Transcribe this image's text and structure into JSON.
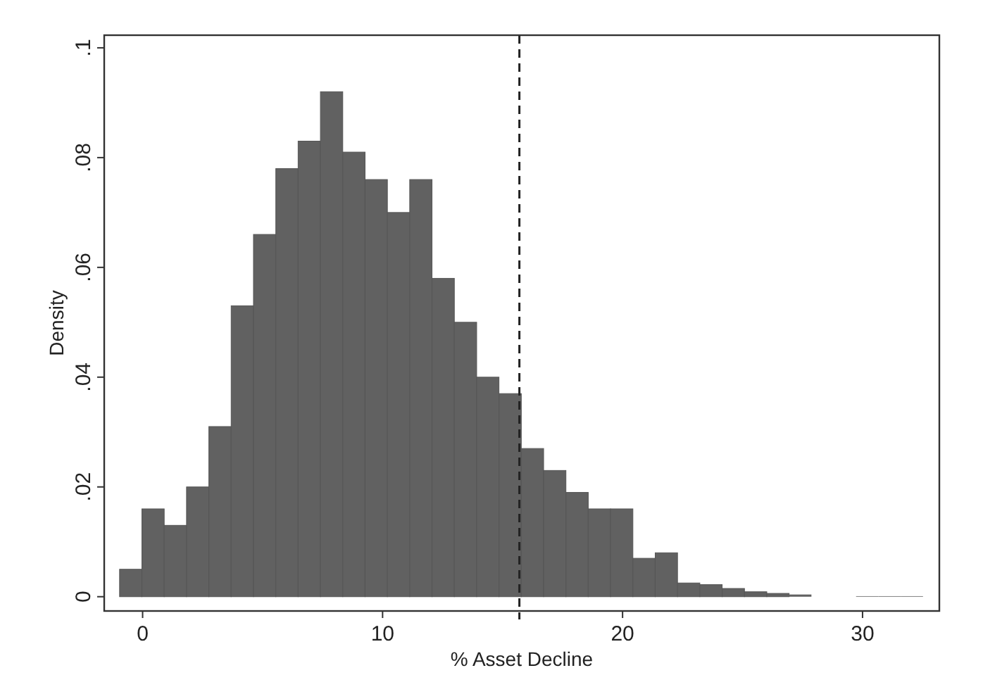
{
  "chart_data": {
    "type": "histogram",
    "xlabel": "% Asset Decline",
    "ylabel": "Density",
    "bins": [
      -0.96,
      -0.03,
      0.9,
      1.83,
      2.76,
      3.69,
      4.62,
      5.55,
      6.48,
      7.41,
      8.34,
      9.27,
      10.2,
      11.13,
      12.06,
      12.99,
      13.92,
      14.85,
      15.78,
      16.71,
      17.64,
      18.57,
      19.5,
      20.43,
      21.36,
      22.29,
      23.22,
      24.15,
      25.08,
      26.01,
      26.94,
      27.87,
      28.8,
      29.73,
      30.66,
      31.59,
      32.52
    ],
    "values": [
      0.005,
      0.016,
      0.013,
      0.02,
      0.031,
      0.053,
      0.066,
      0.078,
      0.083,
      0.092,
      0.081,
      0.076,
      0.07,
      0.076,
      0.058,
      0.05,
      0.04,
      0.037,
      0.027,
      0.023,
      0.019,
      0.016,
      0.016,
      0.007,
      0.008,
      0.0025,
      0.0022,
      0.0015,
      0.0009,
      0.0006,
      0.0004,
      0,
      0,
      0.0001,
      0.0001,
      0.0001
    ],
    "color": "#616161",
    "xlim": [
      -1.6,
      33.2
    ],
    "xticks": [
      0,
      10,
      20,
      30
    ],
    "ylim": [
      -0.0026,
      0.1023
    ],
    "yticks": [
      0,
      {
        "value": 0.02,
        "label": ".02"
      },
      {
        "value": 0.04,
        "label": ".04"
      },
      {
        "value": 0.06,
        "label": ".06"
      },
      {
        "value": 0.08,
        "label": ".08"
      },
      {
        "value": 0.1,
        "label": ".1"
      }
    ],
    "ref_lines": [
      {
        "axis": "x",
        "value": 15.7,
        "line_style": "dashed",
        "color": "#222222"
      }
    ],
    "grid": false
  }
}
